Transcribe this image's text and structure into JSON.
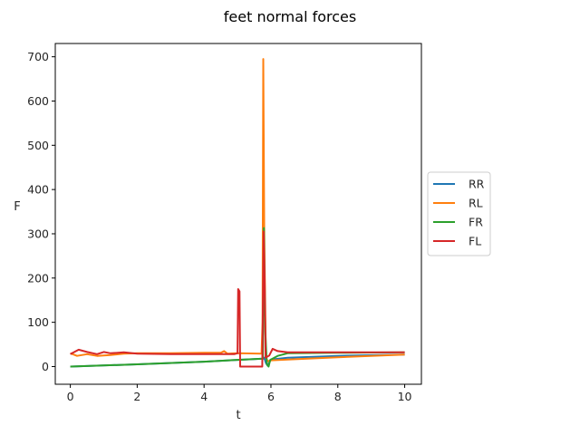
{
  "chart_data": {
    "type": "line",
    "title": "feet normal forces",
    "xlabel": "t",
    "ylabel": "F",
    "xlim": [
      -0.45,
      10.5
    ],
    "ylim": [
      -40,
      730
    ],
    "xticks": [
      0,
      2,
      4,
      6,
      8,
      10
    ],
    "yticks": [
      0,
      100,
      200,
      300,
      400,
      500,
      600,
      700
    ],
    "grid": false,
    "legend_position": "right-outside",
    "series": [
      {
        "name": "RR",
        "color": "#1f77b4",
        "points": [
          [
            0,
            0
          ],
          [
            2,
            5
          ],
          [
            4,
            11
          ],
          [
            5,
            15
          ],
          [
            5.78,
            18
          ],
          [
            5.8,
            20
          ],
          [
            5.85,
            8
          ],
          [
            5.9,
            2
          ],
          [
            6.0,
            16
          ],
          [
            6.5,
            20
          ],
          [
            8,
            24
          ],
          [
            10,
            27
          ]
        ]
      },
      {
        "name": "RL",
        "color": "#ff7f0e",
        "points": [
          [
            0,
            30
          ],
          [
            0.2,
            24
          ],
          [
            0.5,
            28
          ],
          [
            0.8,
            24
          ],
          [
            1.2,
            26
          ],
          [
            1.6,
            29
          ],
          [
            2,
            30
          ],
          [
            3,
            30
          ],
          [
            4,
            31
          ],
          [
            4.5,
            31
          ],
          [
            4.6,
            35
          ],
          [
            4.7,
            29
          ],
          [
            5,
            30
          ],
          [
            5.72,
            29
          ],
          [
            5.75,
            100
          ],
          [
            5.77,
            695
          ],
          [
            5.8,
            300
          ],
          [
            5.85,
            20
          ],
          [
            5.9,
            12
          ],
          [
            6.0,
            14
          ],
          [
            6.5,
            16
          ],
          [
            8,
            21
          ],
          [
            10,
            27
          ]
        ]
      },
      {
        "name": "FR",
        "color": "#2ca02c",
        "points": [
          [
            0,
            0
          ],
          [
            2,
            5
          ],
          [
            4,
            11
          ],
          [
            5,
            15
          ],
          [
            5.76,
            18
          ],
          [
            5.79,
            313
          ],
          [
            5.83,
            80
          ],
          [
            5.88,
            5
          ],
          [
            5.93,
            0
          ],
          [
            5.98,
            15
          ],
          [
            6.2,
            24
          ],
          [
            6.5,
            30
          ],
          [
            8,
            31
          ],
          [
            10,
            32
          ]
        ]
      },
      {
        "name": "FL",
        "color": "#d62728",
        "points": [
          [
            0,
            28
          ],
          [
            0.25,
            38
          ],
          [
            0.5,
            33
          ],
          [
            0.8,
            28
          ],
          [
            1.0,
            33
          ],
          [
            1.2,
            30
          ],
          [
            1.6,
            32
          ],
          [
            2,
            29
          ],
          [
            3,
            28
          ],
          [
            4,
            28
          ],
          [
            4.9,
            28
          ],
          [
            5.0,
            30
          ],
          [
            5.02,
            175
          ],
          [
            5.06,
            170
          ],
          [
            5.08,
            0
          ],
          [
            5.7,
            0
          ],
          [
            5.74,
            0
          ],
          [
            5.78,
            305
          ],
          [
            5.81,
            200
          ],
          [
            5.84,
            20
          ],
          [
            5.95,
            25
          ],
          [
            6.05,
            40
          ],
          [
            6.2,
            35
          ],
          [
            6.5,
            32
          ],
          [
            8,
            32
          ],
          [
            10,
            32
          ]
        ]
      }
    ]
  }
}
